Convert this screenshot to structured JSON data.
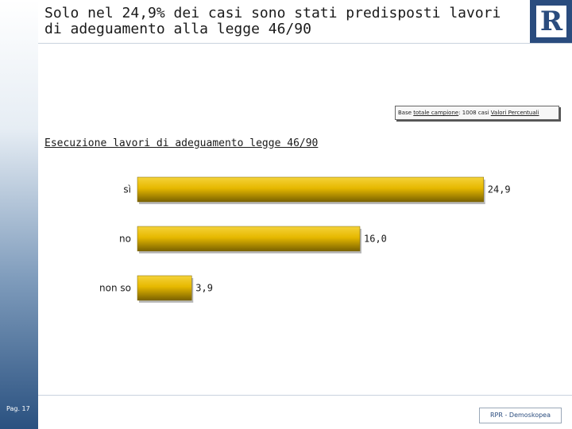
{
  "slide": {
    "title_line1": "Solo nel 24,9% dei casi sono stati predisposti lavori",
    "title_line2": "di adeguamento alla legge 46/90",
    "page_label": "Pag. 17",
    "brand_text": "RPR - Demoskopea"
  },
  "base_note": {
    "prefix": "Base ",
    "underlined": "totale campione",
    "middle": ": 1008 casi ",
    "suffix": "Valori Percentuali"
  },
  "colors": {
    "bar_fill": "#e6b800",
    "bar_highlight": "#f5d33a",
    "bar_edge": "#7a6200",
    "accent_blue": "#2a4c7e"
  },
  "chart_data": {
    "type": "bar",
    "orientation": "horizontal",
    "title": "Esecuzione lavori di adeguamento legge 46/90",
    "categories": [
      "sì",
      "no",
      "non so"
    ],
    "values": [
      24.9,
      16.0,
      3.9
    ],
    "value_labels": [
      "24,9",
      "16,0",
      "3,9"
    ],
    "xlim": [
      0,
      26
    ],
    "grid": false,
    "legend": "none"
  }
}
